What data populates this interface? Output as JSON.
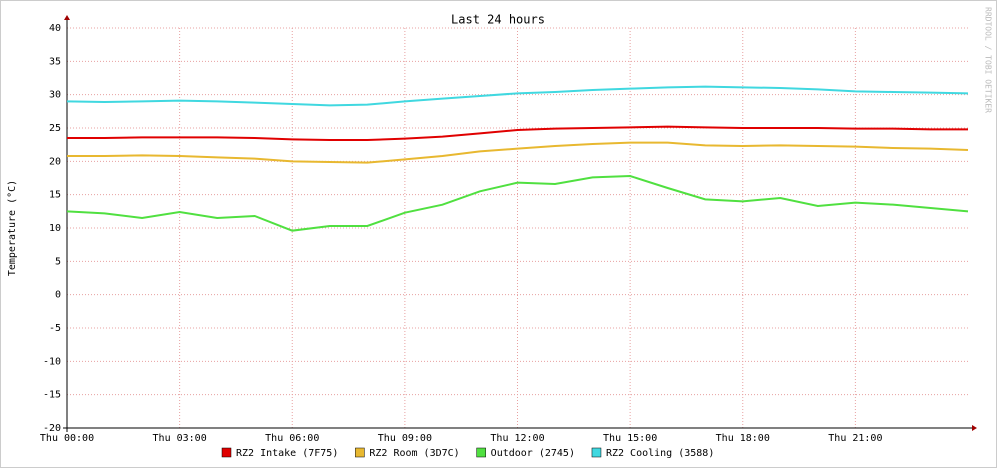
{
  "chart_data": {
    "type": "line",
    "title": "Last 24 hours",
    "y_label": "Temperature (°C)",
    "watermark": "RRDTOOL / TOBI OETIKER",
    "x": [
      0,
      1,
      2,
      3,
      4,
      5,
      6,
      7,
      8,
      9,
      10,
      11,
      12,
      13,
      14,
      15,
      16,
      17,
      18,
      19,
      20,
      21,
      22,
      23,
      24
    ],
    "xlim": [
      0,
      24
    ],
    "xticks": [
      {
        "value": 0,
        "label": "Thu 00:00"
      },
      {
        "value": 3,
        "label": "Thu 03:00"
      },
      {
        "value": 6,
        "label": "Thu 06:00"
      },
      {
        "value": 9,
        "label": "Thu 09:00"
      },
      {
        "value": 12,
        "label": "Thu 12:00"
      },
      {
        "value": 15,
        "label": "Thu 15:00"
      },
      {
        "value": 18,
        "label": "Thu 18:00"
      },
      {
        "value": 21,
        "label": "Thu 21:00"
      }
    ],
    "ylim": [
      -20,
      40
    ],
    "yticks": [
      -20,
      -15,
      -10,
      -5,
      0,
      5,
      10,
      15,
      20,
      25,
      30,
      35,
      40
    ],
    "grid": true,
    "series": [
      {
        "name": "RZ2 Intake (7F75)",
        "color": "#e00000",
        "values": [
          23.5,
          23.5,
          23.6,
          23.6,
          23.6,
          23.5,
          23.3,
          23.2,
          23.2,
          23.4,
          23.7,
          24.2,
          24.7,
          24.9,
          25.0,
          25.1,
          25.2,
          25.1,
          25.0,
          25.0,
          25.0,
          24.9,
          24.9,
          24.8,
          24.8
        ]
      },
      {
        "name": "RZ2 Room (3D7C)",
        "color": "#e8b830",
        "values": [
          20.8,
          20.8,
          20.9,
          20.8,
          20.6,
          20.4,
          20.0,
          19.9,
          19.8,
          20.3,
          20.8,
          21.5,
          21.9,
          22.3,
          22.6,
          22.8,
          22.8,
          22.4,
          22.3,
          22.4,
          22.3,
          22.2,
          22.0,
          21.9,
          21.7
        ]
      },
      {
        "name": "Outdoor (2745)",
        "color": "#50e040",
        "values": [
          12.5,
          12.2,
          11.5,
          12.4,
          11.5,
          11.8,
          9.6,
          10.3,
          10.3,
          12.3,
          13.5,
          15.5,
          16.8,
          16.6,
          17.6,
          17.8,
          16.0,
          14.3,
          14.0,
          14.5,
          13.3,
          13.8,
          13.5,
          13.0,
          12.5
        ]
      },
      {
        "name": "RZ2 Cooling (3588)",
        "color": "#40d8e0",
        "values": [
          29.0,
          28.9,
          29.0,
          29.1,
          29.0,
          28.8,
          28.6,
          28.4,
          28.5,
          29.0,
          29.4,
          29.8,
          30.2,
          30.4,
          30.7,
          30.9,
          31.1,
          31.2,
          31.1,
          31.0,
          30.8,
          30.5,
          30.4,
          30.3,
          30.2
        ]
      }
    ]
  }
}
